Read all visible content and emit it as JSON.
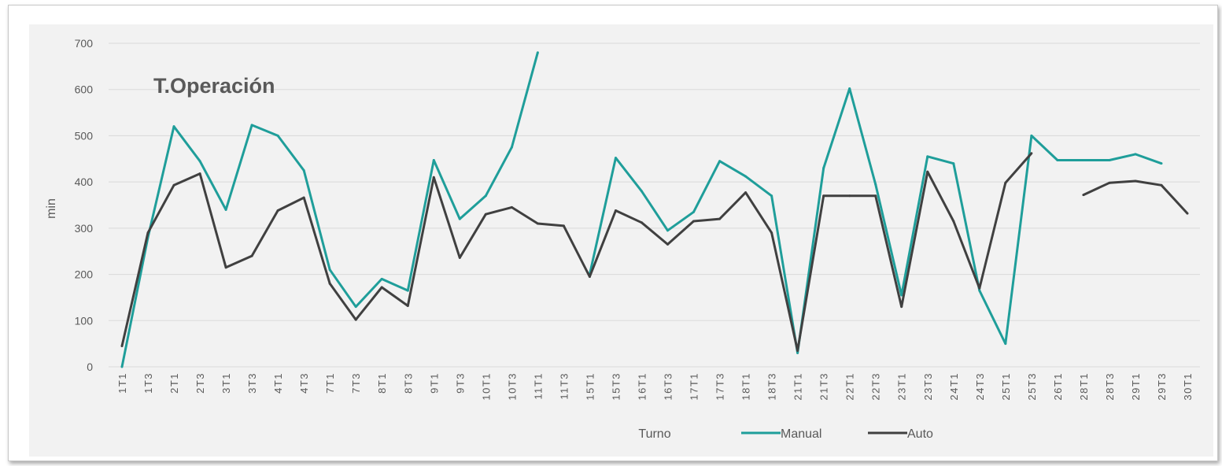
{
  "chart_data": {
    "type": "line",
    "title": "T.Operación",
    "xlabel": "Turno",
    "ylabel": "min",
    "ylim": [
      0,
      700
    ],
    "yticks": [
      0,
      100,
      200,
      300,
      400,
      500,
      600,
      700
    ],
    "grid": true,
    "legend_position": "bottom",
    "categories": [
      "1T1",
      "1T3",
      "2T1",
      "2T3",
      "3T1",
      "3T3",
      "4T1",
      "4T3",
      "7T1",
      "7T3",
      "8T1",
      "8T3",
      "9T1",
      "9T3",
      "10T1",
      "10T3",
      "11T1",
      "11T3",
      "15T1",
      "15T3",
      "16T1",
      "16T3",
      "17T1",
      "17T3",
      "18T1",
      "18T3",
      "21T1",
      "21T3",
      "22T1",
      "22T3",
      "23T1",
      "23T3",
      "24T1",
      "24T3",
      "25T1",
      "25T3",
      "26T1",
      "28T1",
      "28T3",
      "29T1",
      "29T3",
      "30T1"
    ],
    "series": [
      {
        "name": "Manual",
        "color": "#1f9e9a",
        "values": [
          0,
          280,
          520,
          445,
          340,
          523,
          500,
          425,
          210,
          130,
          190,
          165,
          447,
          320,
          370,
          475,
          680,
          null,
          200,
          452,
          380,
          295,
          335,
          445,
          412,
          370,
          30,
          430,
          602,
          395,
          155,
          455,
          440,
          165,
          50,
          500,
          447,
          447,
          447,
          460,
          440,
          null
        ]
      },
      {
        "name": "Auto",
        "color": "#404040",
        "values": [
          45,
          290,
          393,
          418,
          215,
          240,
          338,
          366,
          180,
          102,
          172,
          132,
          410,
          236,
          330,
          345,
          310,
          305,
          195,
          338,
          312,
          265,
          315,
          320,
          377,
          290,
          35,
          370,
          370,
          370,
          130,
          422,
          315,
          170,
          398,
          462,
          null,
          372,
          398,
          402,
          393,
          332
        ]
      }
    ]
  }
}
